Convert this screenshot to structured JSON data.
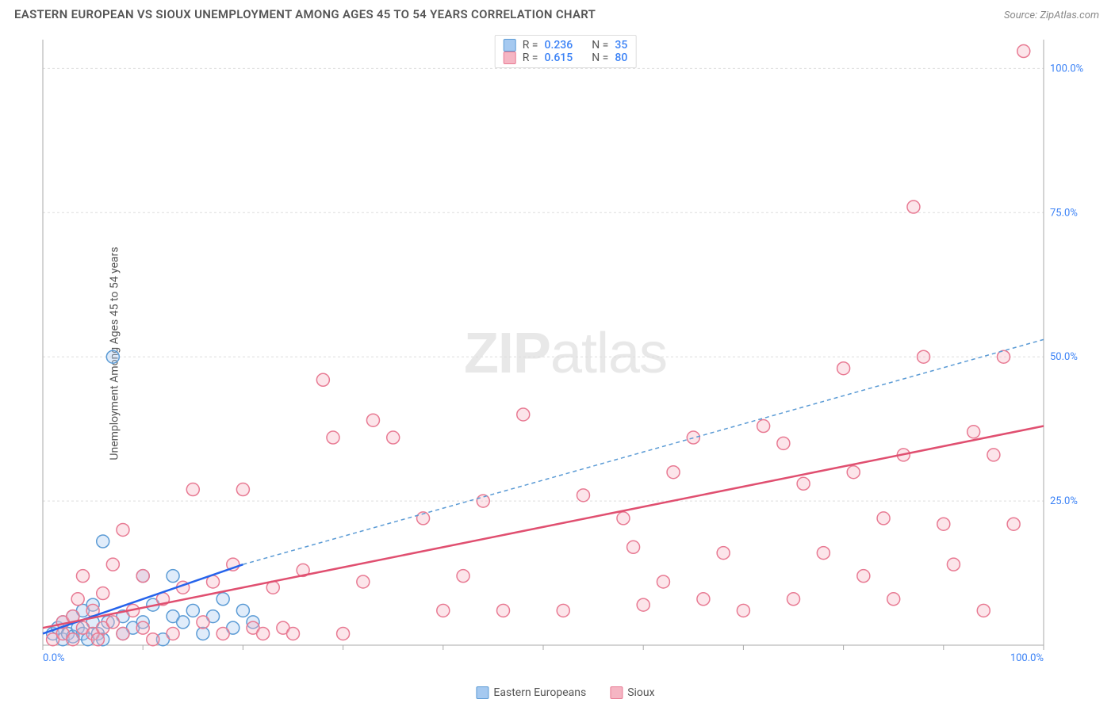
{
  "header": {
    "title": "EASTERN EUROPEAN VS SIOUX UNEMPLOYMENT AMONG AGES 45 TO 54 YEARS CORRELATION CHART",
    "source_prefix": "Source: ",
    "source": "ZipAtlas.com"
  },
  "y_axis": {
    "label": "Unemployment Among Ages 45 to 54 years"
  },
  "watermark": {
    "zip": "ZIP",
    "atlas": "atlas"
  },
  "legend_top": {
    "rows": [
      {
        "swatch_fill": "#a5c9f0",
        "swatch_stroke": "#5b9bd5",
        "r_label": "R =",
        "r_val": "0.236",
        "n_label": "N =",
        "n_val": "35"
      },
      {
        "swatch_fill": "#f5b5c3",
        "swatch_stroke": "#e87a93",
        "r_label": "R =",
        "r_val": "0.615",
        "n_label": "N =",
        "n_val": "80"
      }
    ]
  },
  "legend_bottom": {
    "items": [
      {
        "swatch_fill": "#a5c9f0",
        "swatch_stroke": "#5b9bd5",
        "label": "Eastern Europeans"
      },
      {
        "swatch_fill": "#f5b5c3",
        "swatch_stroke": "#e87a93",
        "label": "Sioux"
      }
    ]
  },
  "chart": {
    "type": "scatter",
    "xlim": [
      0,
      100
    ],
    "ylim": [
      0,
      105
    ],
    "x_ticks": [
      0,
      10,
      20,
      30,
      40,
      50,
      60,
      70,
      80,
      90,
      100
    ],
    "x_tick_labels": {
      "0": "0.0%",
      "100": "100.0%"
    },
    "y_ticks": [
      25,
      50,
      75,
      100
    ],
    "y_tick_labels": {
      "25": "25.0%",
      "50": "50.0%",
      "75": "75.0%",
      "100": "100.0%"
    },
    "grid_color": "#dddddd",
    "axis_color": "#aaaaaa",
    "background_color": "#ffffff",
    "marker_radius": 8,
    "marker_stroke_width": 1.5,
    "marker_fill_opacity": 0.35,
    "series": [
      {
        "name": "Eastern Europeans",
        "color_fill": "#a5c9f0",
        "color_stroke": "#5b9bd5",
        "trend": {
          "x1": 0,
          "y1": 2,
          "x2": 20,
          "y2": 14,
          "dash": "none",
          "color": "#2563eb",
          "width": 2.5
        },
        "trend_ext": {
          "x1": 20,
          "y1": 14,
          "x2": 100,
          "y2": 53,
          "dash": "5,4",
          "color": "#5b9bd5",
          "width": 1.5
        },
        "points": [
          [
            1,
            2
          ],
          [
            1.5,
            3
          ],
          [
            2,
            1
          ],
          [
            2,
            4
          ],
          [
            2.5,
            2
          ],
          [
            3,
            5
          ],
          [
            3,
            1.5
          ],
          [
            3.5,
            3
          ],
          [
            4,
            2
          ],
          [
            4,
            6
          ],
          [
            4.5,
            1
          ],
          [
            5,
            4
          ],
          [
            5,
            7
          ],
          [
            5.5,
            2
          ],
          [
            6,
            1
          ],
          [
            6,
            18
          ],
          [
            6.5,
            4
          ],
          [
            7,
            50
          ],
          [
            8,
            5
          ],
          [
            8,
            2
          ],
          [
            9,
            3
          ],
          [
            10,
            12
          ],
          [
            10,
            4
          ],
          [
            11,
            7
          ],
          [
            12,
            1
          ],
          [
            13,
            12
          ],
          [
            13,
            5
          ],
          [
            14,
            4
          ],
          [
            15,
            6
          ],
          [
            16,
            2
          ],
          [
            17,
            5
          ],
          [
            18,
            8
          ],
          [
            19,
            3
          ],
          [
            20,
            6
          ],
          [
            21,
            4
          ]
        ]
      },
      {
        "name": "Sioux",
        "color_fill": "#f5b5c3",
        "color_stroke": "#e87a93",
        "trend": {
          "x1": 0,
          "y1": 3,
          "x2": 100,
          "y2": 38,
          "dash": "none",
          "color": "#e04f70",
          "width": 2.5
        },
        "points": [
          [
            1,
            1
          ],
          [
            2,
            2
          ],
          [
            2,
            4
          ],
          [
            3,
            1
          ],
          [
            3,
            5
          ],
          [
            3.5,
            8
          ],
          [
            4,
            3
          ],
          [
            4,
            12
          ],
          [
            5,
            2
          ],
          [
            5,
            6
          ],
          [
            5.5,
            1
          ],
          [
            6,
            9
          ],
          [
            6,
            3
          ],
          [
            7,
            14
          ],
          [
            7,
            4
          ],
          [
            8,
            20
          ],
          [
            8,
            2
          ],
          [
            9,
            6
          ],
          [
            10,
            12
          ],
          [
            10,
            3
          ],
          [
            11,
            1
          ],
          [
            12,
            8
          ],
          [
            13,
            2
          ],
          [
            14,
            10
          ],
          [
            15,
            27
          ],
          [
            16,
            4
          ],
          [
            17,
            11
          ],
          [
            18,
            2
          ],
          [
            19,
            14
          ],
          [
            20,
            27
          ],
          [
            21,
            3
          ],
          [
            22,
            2
          ],
          [
            23,
            10
          ],
          [
            24,
            3
          ],
          [
            25,
            2
          ],
          [
            26,
            13
          ],
          [
            28,
            46
          ],
          [
            29,
            36
          ],
          [
            30,
            2
          ],
          [
            32,
            11
          ],
          [
            33,
            39
          ],
          [
            35,
            36
          ],
          [
            38,
            22
          ],
          [
            40,
            6
          ],
          [
            42,
            12
          ],
          [
            44,
            25
          ],
          [
            46,
            6
          ],
          [
            48,
            40
          ],
          [
            52,
            6
          ],
          [
            54,
            26
          ],
          [
            58,
            22
          ],
          [
            59,
            17
          ],
          [
            60,
            7
          ],
          [
            62,
            11
          ],
          [
            63,
            30
          ],
          [
            65,
            36
          ],
          [
            66,
            8
          ],
          [
            68,
            16
          ],
          [
            70,
            6
          ],
          [
            72,
            38
          ],
          [
            74,
            35
          ],
          [
            75,
            8
          ],
          [
            76,
            28
          ],
          [
            78,
            16
          ],
          [
            80,
            48
          ],
          [
            81,
            30
          ],
          [
            82,
            12
          ],
          [
            84,
            22
          ],
          [
            85,
            8
          ],
          [
            86,
            33
          ],
          [
            87,
            76
          ],
          [
            88,
            50
          ],
          [
            90,
            21
          ],
          [
            91,
            14
          ],
          [
            93,
            37
          ],
          [
            94,
            6
          ],
          [
            95,
            33
          ],
          [
            96,
            50
          ],
          [
            97,
            21
          ],
          [
            98,
            103
          ]
        ]
      }
    ]
  }
}
